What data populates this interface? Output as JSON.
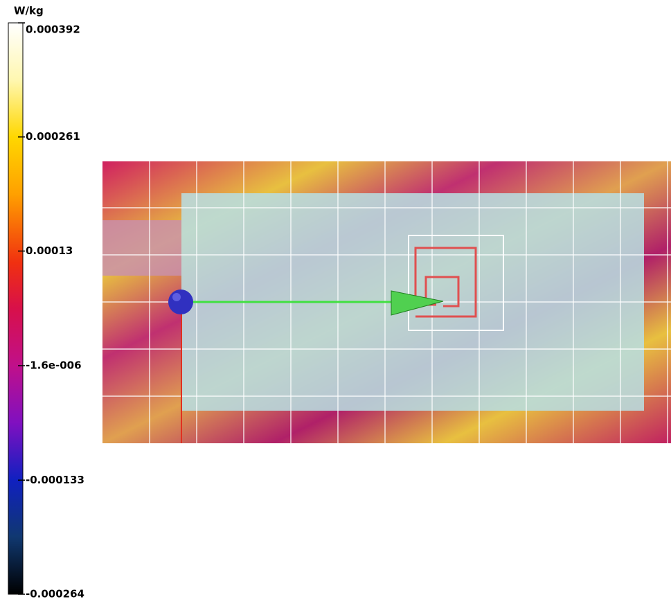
{
  "colorbar": {
    "unit": "W/kg",
    "lim": [
      -0.000264,
      0.000392
    ],
    "ticks": [
      0.000392,
      0.000261,
      0.00013,
      {
        "value": -1.6e-06,
        "label": "-1.6e-006"
      },
      -0.000133,
      -0.000264
    ]
  }
}
